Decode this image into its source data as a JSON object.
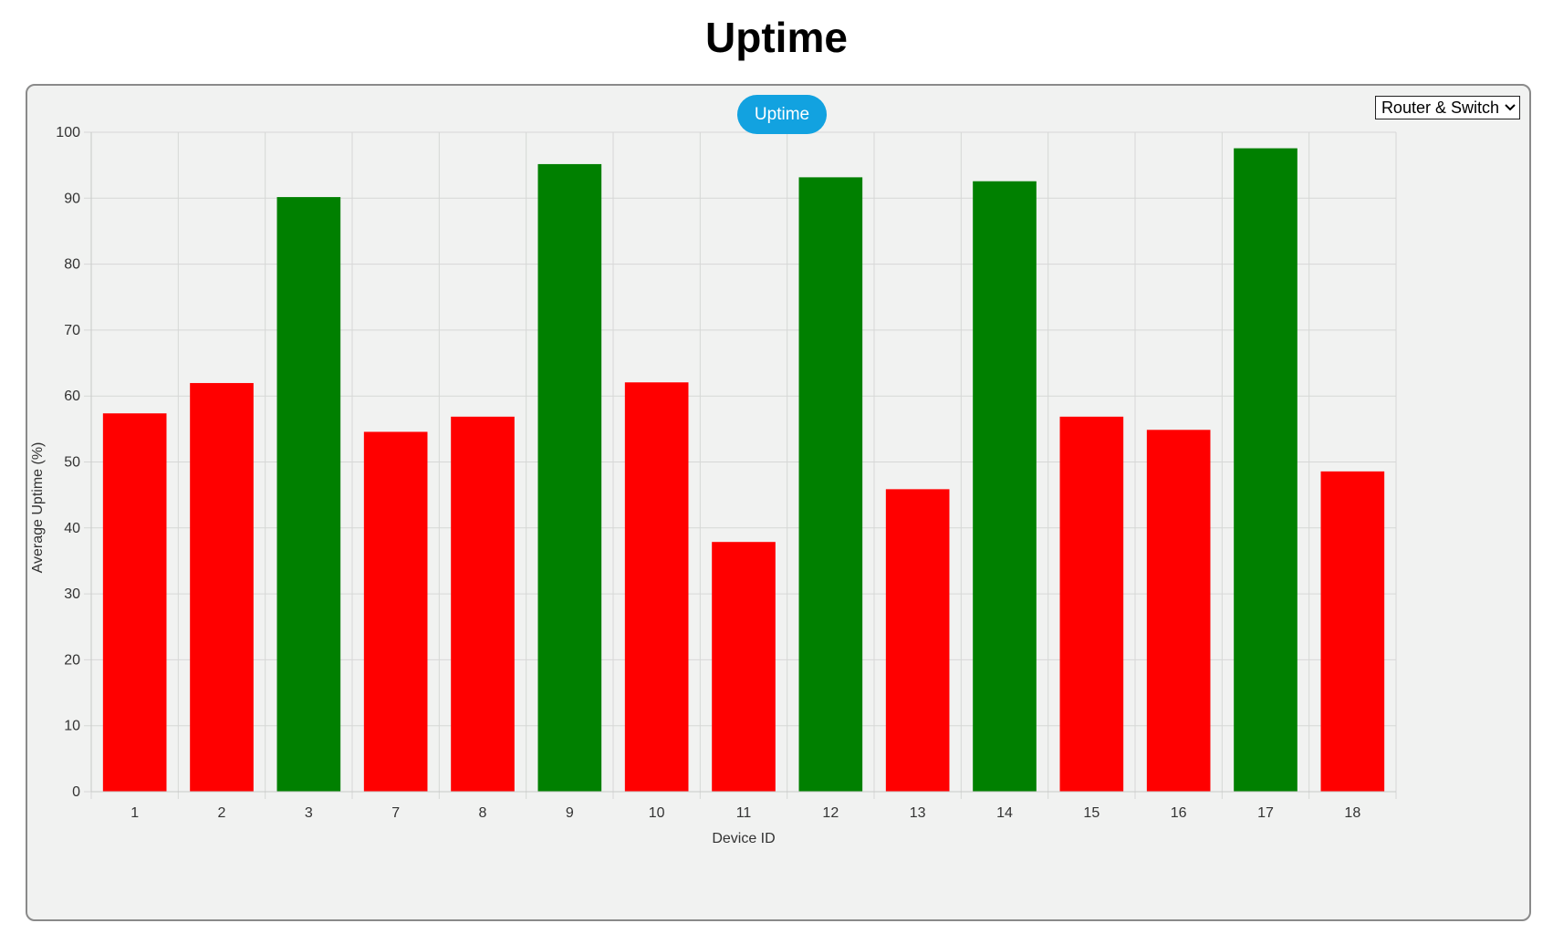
{
  "page": {
    "title": "Uptime"
  },
  "legend": {
    "label": "Uptime",
    "color": "#12a2e0"
  },
  "filter": {
    "selected": "Router & Switch"
  },
  "colors": {
    "above_threshold": "#008000",
    "below_threshold": "#ff0000"
  },
  "chart_data": {
    "type": "bar",
    "categories": [
      "1",
      "2",
      "3",
      "7",
      "8",
      "9",
      "10",
      "11",
      "12",
      "13",
      "14",
      "15",
      "16",
      "17",
      "18"
    ],
    "series": [
      {
        "name": "Uptime",
        "values": [
          57.3,
          61.9,
          90.1,
          54.5,
          56.8,
          95.1,
          62.0,
          37.8,
          93.1,
          45.8,
          92.5,
          56.8,
          54.8,
          97.5,
          48.5
        ]
      }
    ],
    "bar_colors": [
      "red",
      "red",
      "green",
      "red",
      "red",
      "green",
      "red",
      "red",
      "green",
      "red",
      "green",
      "red",
      "red",
      "green",
      "red"
    ],
    "xlabel": "Device ID",
    "ylabel": "Average Uptime (%)",
    "ylim": [
      0,
      100
    ],
    "yticks": [
      0,
      10,
      20,
      30,
      40,
      50,
      60,
      70,
      80,
      90,
      100
    ],
    "grid": true,
    "legend_position": "top-center"
  }
}
